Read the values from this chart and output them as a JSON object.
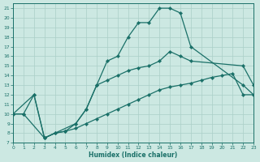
{
  "xlabel": "Humidex (Indice chaleur)",
  "bg_color": "#cce8e2",
  "grid_color": "#aacfc8",
  "line_color": "#1a7068",
  "xlim": [
    0,
    23
  ],
  "ylim": [
    7,
    21.5
  ],
  "xticks": [
    0,
    1,
    2,
    3,
    4,
    5,
    6,
    7,
    8,
    9,
    10,
    11,
    12,
    13,
    14,
    15,
    16,
    17,
    18,
    19,
    20,
    21,
    22,
    23
  ],
  "yticks": [
    7,
    8,
    9,
    10,
    11,
    12,
    13,
    14,
    15,
    16,
    17,
    18,
    19,
    20,
    21
  ],
  "line1_x": [
    0,
    1,
    2,
    3,
    4,
    5,
    6,
    7,
    8,
    9,
    10,
    11,
    12,
    13,
    14,
    15,
    16,
    17,
    22,
    23
  ],
  "line1_y": [
    10,
    10,
    12,
    7.5,
    8.0,
    8.2,
    9.0,
    10.5,
    13.0,
    15.5,
    16.0,
    18.0,
    19.5,
    19.5,
    21.0,
    21.0,
    20.5,
    17.0,
    13.0,
    12.0
  ],
  "line2_x": [
    0,
    2,
    3,
    6,
    7,
    8,
    9,
    10,
    11,
    12,
    13,
    14,
    15,
    16,
    17,
    22,
    23
  ],
  "line2_y": [
    10,
    12,
    7.5,
    9.0,
    10.5,
    13.0,
    13.5,
    14.0,
    14.5,
    14.8,
    15.0,
    15.5,
    16.5,
    16.0,
    15.5,
    15.0,
    13.0
  ],
  "line3_x": [
    0,
    1,
    3,
    4,
    5,
    6,
    7,
    8,
    9,
    10,
    11,
    12,
    13,
    14,
    15,
    16,
    17,
    18,
    19,
    20,
    21,
    22,
    23
  ],
  "line3_y": [
    10,
    10,
    7.5,
    8.0,
    8.2,
    8.5,
    9.0,
    9.5,
    10.0,
    10.5,
    11.0,
    11.5,
    12.0,
    12.5,
    12.8,
    13.0,
    13.2,
    13.5,
    13.8,
    14.0,
    14.2,
    12.0,
    12.0
  ]
}
